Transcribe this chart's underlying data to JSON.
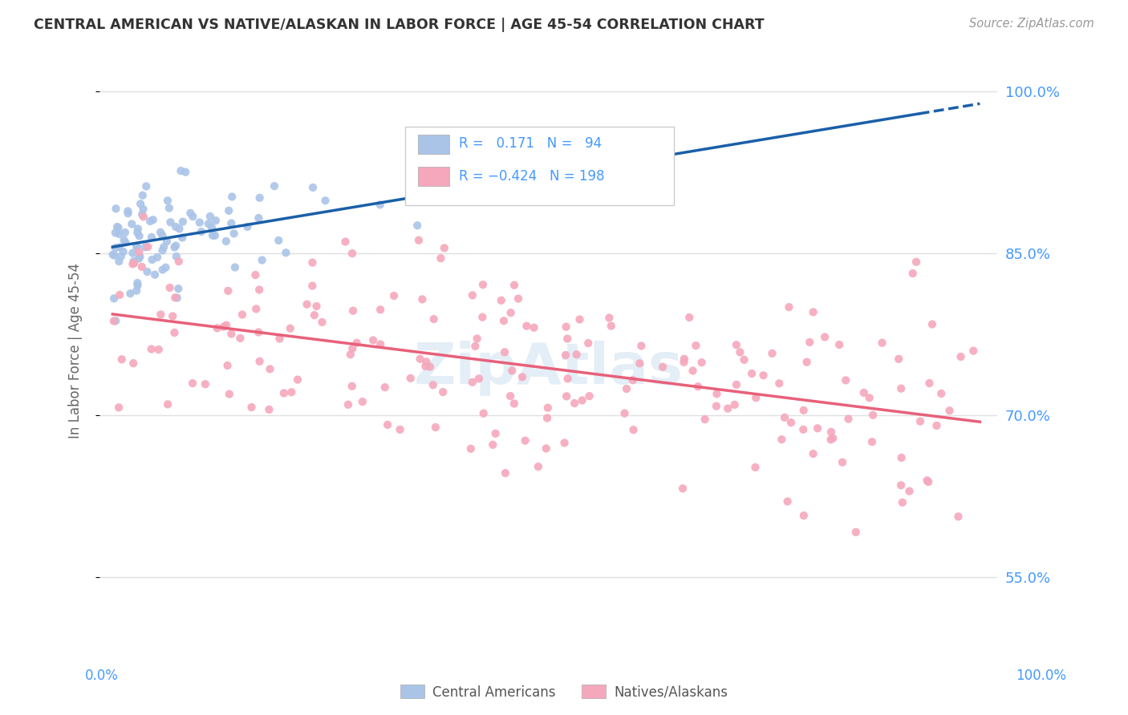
{
  "title": "CENTRAL AMERICAN VS NATIVE/ALASKAN IN LABOR FORCE | AGE 45-54 CORRELATION CHART",
  "source": "Source: ZipAtlas.com",
  "ylabel": "In Labor Force | Age 45-54",
  "xlim": [
    0.0,
    1.0
  ],
  "ylim": [
    0.48,
    1.04
  ],
  "yticks": [
    0.55,
    0.7,
    0.85,
    1.0
  ],
  "ytick_labels": [
    "55.0%",
    "70.0%",
    "85.0%",
    "100.0%"
  ],
  "blue_R": 0.171,
  "blue_N": 94,
  "pink_R": -0.424,
  "pink_N": 198,
  "blue_color": "#aac4e8",
  "pink_color": "#f5a8bc",
  "blue_line_color": "#1a5fa8",
  "pink_line_color": "#e8607a",
  "watermark": "ZipAtlas",
  "background_color": "#ffffff",
  "grid_color": "#e0e0e0"
}
